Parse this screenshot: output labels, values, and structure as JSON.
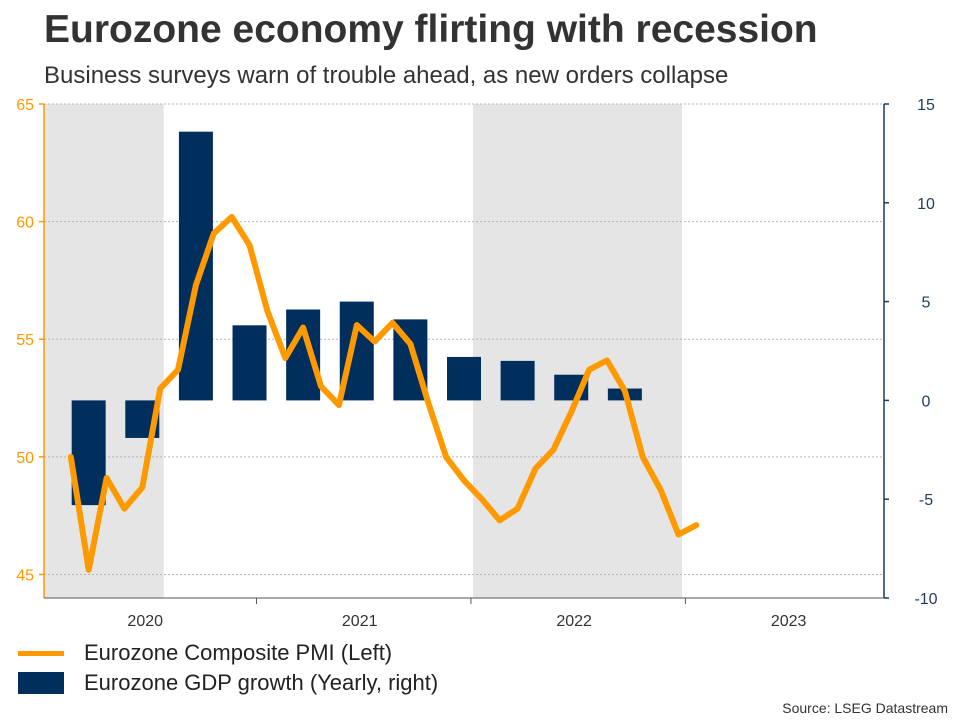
{
  "header": {
    "title": "Eurozone economy flirting with recession",
    "subtitle": "Business surveys warn of trouble ahead, as new orders collapse"
  },
  "source": "Source: LSEG Datastream",
  "chart_data": {
    "type": "bar",
    "colors": {
      "pmi": "#ff9900",
      "gdp": "#002e5d",
      "recession_shading": "#e5e5e5",
      "left_axis": "#ff9900",
      "right_axis": "#1f3c5c"
    },
    "x_axis": {
      "range": [
        "2020-01",
        "2023-12"
      ],
      "tick_labels": [
        {
          "label": "2020",
          "at": "2020-07"
        },
        {
          "label": "2021",
          "at": "2021-07"
        },
        {
          "label": "2022",
          "at": "2022-07"
        },
        {
          "label": "2023",
          "at": "2023-07"
        }
      ],
      "tick_marks": [
        "2021-01",
        "2022-01",
        "2023-01"
      ]
    },
    "y_left": {
      "ylim": [
        44,
        65
      ],
      "ticks": [
        45,
        50,
        55,
        60,
        65
      ]
    },
    "y_right": {
      "ylim": [
        -10,
        15
      ],
      "ticks": [
        -10,
        -5,
        0,
        5,
        10,
        15
      ]
    },
    "grid": true,
    "shaded_periods": [
      {
        "start": "2020-01",
        "end": "2020-07"
      },
      {
        "start": "2022-01",
        "end": "2022-12"
      }
    ],
    "series": [
      {
        "name": "Eurozone Composite PMI (Left)",
        "kind": "line",
        "axis": "left",
        "points": [
          {
            "x": "2020-02",
            "y": 50.0
          },
          {
            "x": "2020-03",
            "y": 45.2
          },
          {
            "x": "2020-04",
            "y": 49.1
          },
          {
            "x": "2020-05",
            "y": 47.8
          },
          {
            "x": "2020-06",
            "y": 48.7
          },
          {
            "x": "2020-07",
            "y": 52.9
          },
          {
            "x": "2020-08",
            "y": 53.7
          },
          {
            "x": "2020-09",
            "y": 57.3
          },
          {
            "x": "2020-10",
            "y": 59.5
          },
          {
            "x": "2020-11",
            "y": 60.2
          },
          {
            "x": "2020-12",
            "y": 59.0
          },
          {
            "x": "2021-01",
            "y": 56.2
          },
          {
            "x": "2021-02",
            "y": 54.2
          },
          {
            "x": "2021-03",
            "y": 55.5
          },
          {
            "x": "2021-04",
            "y": 53.0
          },
          {
            "x": "2021-05",
            "y": 52.2
          },
          {
            "x": "2021-06",
            "y": 55.6
          },
          {
            "x": "2021-07",
            "y": 54.9
          },
          {
            "x": "2021-08",
            "y": 55.7
          },
          {
            "x": "2021-09",
            "y": 54.8
          },
          {
            "x": "2021-10",
            "y": 52.3
          },
          {
            "x": "2021-11",
            "y": 50.0
          },
          {
            "x": "2021-12",
            "y": 49.0
          },
          {
            "x": "2022-01",
            "y": 48.2
          },
          {
            "x": "2022-02",
            "y": 47.3
          },
          {
            "x": "2022-03",
            "y": 47.8
          },
          {
            "x": "2022-04",
            "y": 49.5
          },
          {
            "x": "2022-05",
            "y": 50.3
          },
          {
            "x": "2022-06",
            "y": 51.9
          },
          {
            "x": "2022-07",
            "y": 53.7
          },
          {
            "x": "2022-08",
            "y": 54.1
          },
          {
            "x": "2022-09",
            "y": 52.8
          },
          {
            "x": "2022-10",
            "y": 50.0
          },
          {
            "x": "2022-11",
            "y": 48.6
          },
          {
            "x": "2022-12",
            "y": 46.7
          },
          {
            "x": "2023-01",
            "y": 47.1
          }
        ]
      },
      {
        "name": "Eurozone GDP growth (Yearly, right)",
        "kind": "bar",
        "axis": "right",
        "points": [
          {
            "x": "2020-03",
            "y": -5.3
          },
          {
            "x": "2020-06",
            "y": -1.9
          },
          {
            "x": "2020-09",
            "y": 13.6
          },
          {
            "x": "2020-12",
            "y": 3.8
          },
          {
            "x": "2021-03",
            "y": 4.6
          },
          {
            "x": "2021-06",
            "y": 5.0
          },
          {
            "x": "2021-09",
            "y": 4.1
          },
          {
            "x": "2021-12",
            "y": 2.2
          },
          {
            "x": "2022-03",
            "y": 2.0
          },
          {
            "x": "2022-06",
            "y": 1.3
          },
          {
            "x": "2022-09",
            "y": 0.6
          }
        ]
      }
    ]
  }
}
